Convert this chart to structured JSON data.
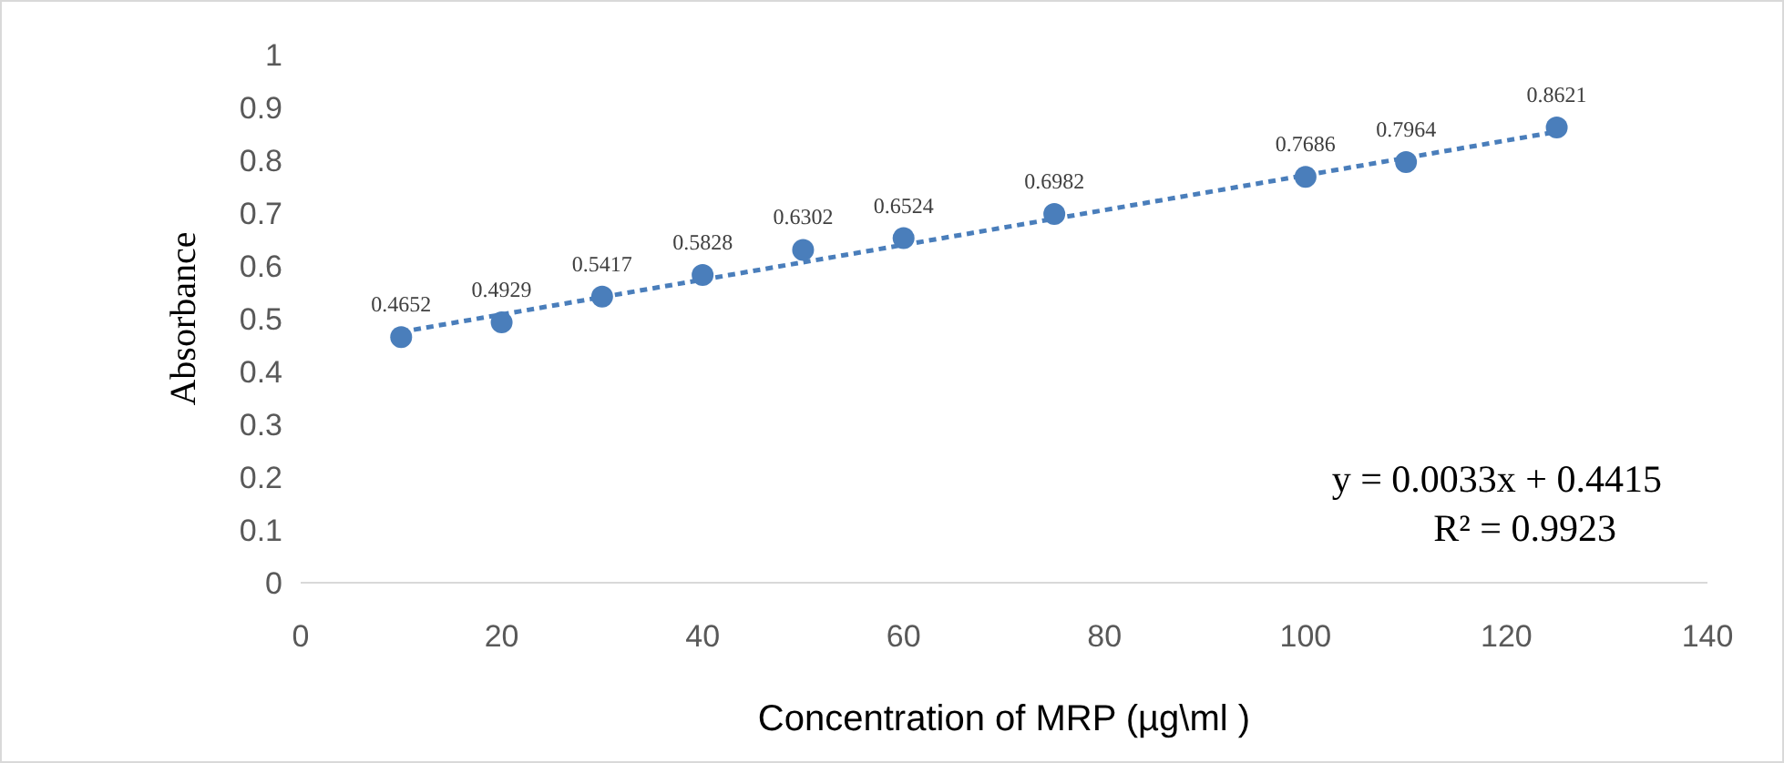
{
  "chart_data": {
    "type": "scatter",
    "xlabel": "Concentration of MRP (µg\\ml )",
    "ylabel": "Absorbance",
    "xlim": [
      0,
      140
    ],
    "xticks": [
      0,
      20,
      40,
      60,
      80,
      100,
      120,
      140
    ],
    "ylim": [
      0,
      1
    ],
    "yticks": [
      0,
      0.1,
      0.2,
      0.3,
      0.4,
      0.5,
      0.6,
      0.7,
      0.8,
      0.9,
      1
    ],
    "grid": false,
    "series": [
      {
        "color": "#4a7ebb",
        "marker": "circle",
        "x": [
          10,
          20,
          30,
          40,
          50,
          60,
          75,
          100,
          110,
          125
        ],
        "values": [
          0.4652,
          0.4929,
          0.5417,
          0.5828,
          0.6302,
          0.6524,
          0.6982,
          0.7686,
          0.7964,
          0.8621
        ],
        "value_labels": [
          "0.4652",
          "0.4929",
          "0.5417",
          "0.5828",
          "0.6302",
          "0.6524",
          "0.6982",
          "0.7686",
          "0.7964",
          "0.8621"
        ]
      },
      {
        "type": "line",
        "color": "#4a7ebb",
        "marker": "none",
        "line_style": "dashed",
        "x": [
          10,
          125
        ],
        "values": [
          0.475,
          0.854
        ]
      }
    ],
    "annotations": [
      "y = 0.0033x + 0.4415",
      "R² = 0.9923"
    ]
  }
}
